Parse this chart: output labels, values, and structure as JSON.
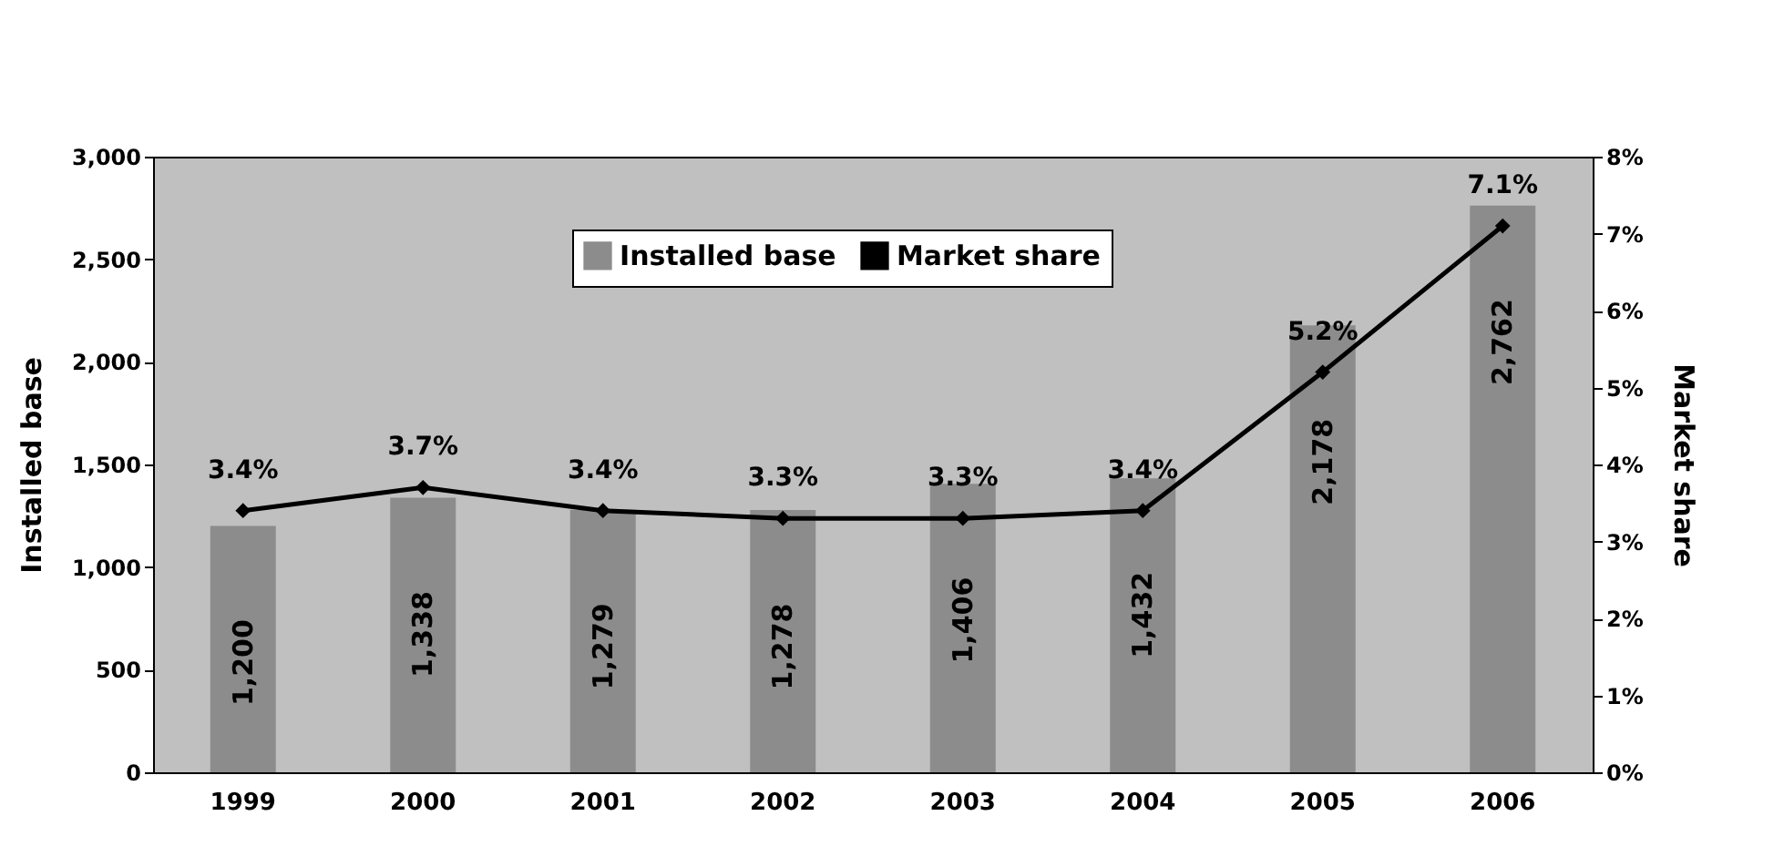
{
  "chart_data": {
    "type": "bar",
    "categories": [
      "1999",
      "2000",
      "2001",
      "2002",
      "2003",
      "2004",
      "2005",
      "2006"
    ],
    "ylabel": "Installed base",
    "y2label": "Market share",
    "series": [
      {
        "name": "Installed base",
        "color": "#8c8c8c",
        "values": [
          1200,
          1338,
          1279,
          1278,
          1406,
          1432,
          2178,
          2762
        ],
        "value_labels": [
          "1,200",
          "1,338",
          "1,279",
          "1,278",
          "1,406",
          "1,432",
          "2,178",
          "2,762"
        ]
      },
      {
        "name": "Market share",
        "type": "line",
        "axis": "y2",
        "color": "#000000",
        "marker": "diamond",
        "values": [
          3.4,
          3.7,
          3.4,
          3.3,
          3.3,
          3.4,
          5.2,
          7.1
        ],
        "value_labels": [
          "3.4%",
          "3.7%",
          "3.4%",
          "3.3%",
          "3.3%",
          "3.4%",
          "5.2%",
          "7.1%"
        ]
      }
    ],
    "ylim": [
      0,
      3000
    ],
    "yticks": [
      {
        "value": 0,
        "label": "0"
      },
      {
        "value": 500,
        "label": "500"
      },
      {
        "value": 1000,
        "label": "1,000"
      },
      {
        "value": 1500,
        "label": "1,500"
      },
      {
        "value": 2000,
        "label": "2,000"
      },
      {
        "value": 2500,
        "label": "2,500"
      },
      {
        "value": 3000,
        "label": "3,000"
      }
    ],
    "y2lim": [
      0,
      8
    ],
    "y2ticks": [
      {
        "value": 0,
        "label": "0%"
      },
      {
        "value": 1,
        "label": "1%"
      },
      {
        "value": 2,
        "label": "2%"
      },
      {
        "value": 3,
        "label": "3%"
      },
      {
        "value": 4,
        "label": "4%"
      },
      {
        "value": 5,
        "label": "5%"
      },
      {
        "value": 6,
        "label": "6%"
      },
      {
        "value": 7,
        "label": "7%"
      },
      {
        "value": 8,
        "label": "8%"
      }
    ],
    "legend": "top",
    "grid": false
  }
}
